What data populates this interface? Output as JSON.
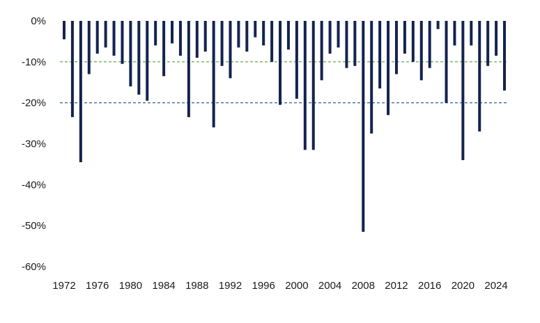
{
  "chart_data": {
    "type": "bar",
    "title": "",
    "xlabel": "",
    "ylabel": "",
    "ylim": [
      -60,
      0
    ],
    "y_ticks": [
      0,
      -10,
      -20,
      -30,
      -40,
      -50,
      -60
    ],
    "y_tick_labels": [
      "0%",
      "-10%",
      "-20%",
      "-30%",
      "-40%",
      "-50%",
      "-60%"
    ],
    "x_tick_labels": [
      "1972",
      "1976",
      "1980",
      "1984",
      "1988",
      "1992",
      "1996",
      "2000",
      "2004",
      "2008",
      "2012",
      "2016",
      "2020",
      "2024"
    ],
    "grid": false,
    "reference_lines": [
      {
        "value": -10,
        "color": "#5a9e3a",
        "style": "dashed"
      },
      {
        "value": -20,
        "color": "#1f4e8c",
        "style": "dashed"
      }
    ],
    "bar_color": "#14234f",
    "categories": [
      1972,
      1973,
      1974,
      1975,
      1976,
      1977,
      1978,
      1979,
      1980,
      1981,
      1982,
      1983,
      1984,
      1985,
      1986,
      1987,
      1988,
      1989,
      1990,
      1991,
      1992,
      1993,
      1994,
      1995,
      1996,
      1997,
      1998,
      1999,
      2000,
      2001,
      2002,
      2003,
      2004,
      2005,
      2006,
      2007,
      2008,
      2009,
      2010,
      2011,
      2012,
      2013,
      2014,
      2015,
      2016,
      2017,
      2018,
      2019,
      2020,
      2021,
      2022,
      2023,
      2024,
      2025
    ],
    "values": [
      -4.5,
      -23.5,
      -34.5,
      -13,
      -8,
      -6.5,
      -8.5,
      -10.5,
      -16,
      -18,
      -19.5,
      -6,
      -13.5,
      -5.5,
      -8.5,
      -23.5,
      -9,
      -7.5,
      -26,
      -11,
      -14,
      -6.5,
      -7.5,
      -4,
      -6,
      -10,
      -20.5,
      -7,
      -19,
      -31.5,
      -31.5,
      -14.5,
      -8,
      -6.5,
      -11.5,
      -11,
      -51.5,
      -27.5,
      -16.5,
      -23,
      -13,
      -8,
      -10,
      -14.5,
      -11.5,
      -2,
      -20,
      -6,
      -34,
      -6,
      -27,
      -11,
      -8.5,
      -17
    ]
  }
}
